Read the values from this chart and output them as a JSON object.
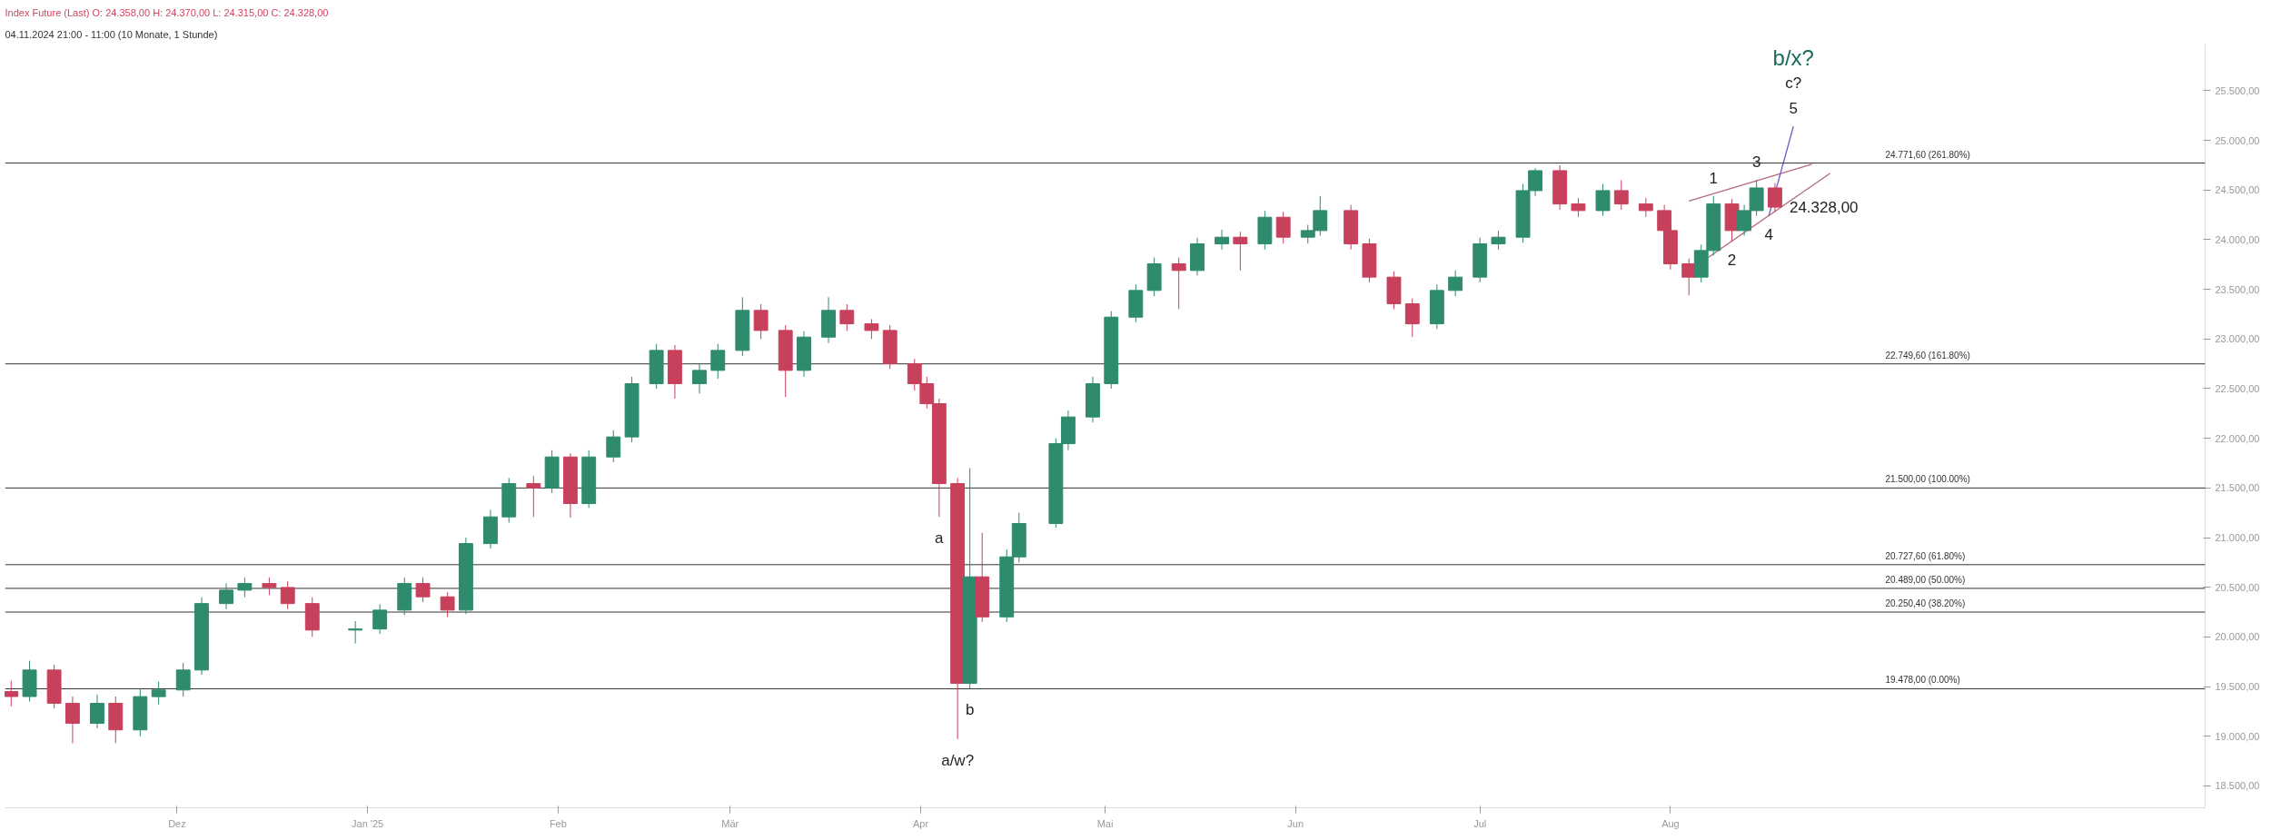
{
  "chart_data": {
    "type": "candlestick",
    "title": "Index Future (Last)  O: 24.358,00  H: 24.370,00  L: 24.315,00  C: 24.328,00",
    "subtitle": "04.11.2024 21:00 - 11:00  (10 Monate, 1 Stunde)",
    "x": [
      "2024-11-04",
      "2024-11-07",
      "2024-11-11",
      "2024-11-14",
      "2024-11-18",
      "2024-11-21",
      "2024-11-25",
      "2024-11-28",
      "2024-12-02",
      "2024-12-05",
      "2024-12-09",
      "2024-12-12",
      "2024-12-16",
      "2024-12-19",
      "2024-12-23",
      "2024-12-30",
      "2025-01-03",
      "2025-01-07",
      "2025-01-10",
      "2025-01-14",
      "2025-01-17",
      "2025-01-21",
      "2025-01-24",
      "2025-01-28",
      "2025-01-31",
      "2025-02-03",
      "2025-02-06",
      "2025-02-10",
      "2025-02-13",
      "2025-02-17",
      "2025-02-20",
      "2025-02-24",
      "2025-02-27",
      "2025-03-03",
      "2025-03-06",
      "2025-03-10",
      "2025-03-13",
      "2025-03-17",
      "2025-03-20",
      "2025-03-24",
      "2025-03-27",
      "2025-03-31",
      "2025-04-02",
      "2025-04-04",
      "2025-04-07",
      "2025-04-09",
      "2025-04-11",
      "2025-04-15",
      "2025-04-17",
      "2025-04-23",
      "2025-04-25",
      "2025-04-29",
      "2025-05-02",
      "2025-05-06",
      "2025-05-09",
      "2025-05-13",
      "2025-05-16",
      "2025-05-20",
      "2025-05-23",
      "2025-05-27",
      "2025-05-30",
      "2025-06-03",
      "2025-06-05",
      "2025-06-10",
      "2025-06-13",
      "2025-06-17",
      "2025-06-20",
      "2025-06-24",
      "2025-06-27",
      "2025-07-01",
      "2025-07-04",
      "2025-07-08",
      "2025-07-10",
      "2025-07-14",
      "2025-07-17",
      "2025-07-21",
      "2025-07-24",
      "2025-07-28",
      "2025-07-31",
      "2025-08-01",
      "2025-08-04",
      "2025-08-06",
      "2025-08-08",
      "2025-08-11",
      "2025-08-13",
      "2025-08-15",
      "2025-08-18"
    ],
    "ohlc": [
      [
        19450,
        19560,
        19300,
        19400
      ],
      [
        19400,
        19760,
        19350,
        19667
      ],
      [
        19667,
        19720,
        19280,
        19332
      ],
      [
        19332,
        19400,
        18930,
        19130
      ],
      [
        19130,
        19420,
        19080,
        19332
      ],
      [
        19332,
        19400,
        18930,
        19064
      ],
      [
        19064,
        19480,
        19000,
        19399
      ],
      [
        19399,
        19550,
        19320,
        19466
      ],
      [
        19466,
        19740,
        19400,
        19667
      ],
      [
        19667,
        20400,
        19620,
        20336
      ],
      [
        20336,
        20540,
        20280,
        20471
      ],
      [
        20471,
        20600,
        20400,
        20538
      ],
      [
        20538,
        20600,
        20420,
        20498
      ],
      [
        20498,
        20560,
        20280,
        20336
      ],
      [
        20336,
        20400,
        20000,
        20069
      ],
      [
        20069,
        20160,
        19935,
        20080
      ],
      [
        20080,
        20330,
        20030,
        20270
      ],
      [
        20270,
        20600,
        20220,
        20538
      ],
      [
        20538,
        20600,
        20350,
        20404
      ],
      [
        20404,
        20450,
        20200,
        20270
      ],
      [
        20270,
        21000,
        20230,
        20940
      ],
      [
        20940,
        21280,
        20890,
        21209
      ],
      [
        21209,
        21600,
        21150,
        21544
      ],
      [
        21544,
        21620,
        21209,
        21500
      ],
      [
        21500,
        21880,
        21450,
        21812
      ],
      [
        21812,
        21850,
        21200,
        21343
      ],
      [
        21343,
        21880,
        21300,
        21812
      ],
      [
        21812,
        22080,
        21760,
        22014
      ],
      [
        22014,
        22620,
        21960,
        22550
      ],
      [
        22550,
        22950,
        22500,
        22885
      ],
      [
        22885,
        22940,
        22400,
        22550
      ],
      [
        22550,
        22750,
        22450,
        22684
      ],
      [
        22684,
        22950,
        22600,
        22885
      ],
      [
        22885,
        23421,
        22830,
        23288
      ],
      [
        23288,
        23350,
        23000,
        23086
      ],
      [
        23086,
        23140,
        22416,
        22684
      ],
      [
        22684,
        23080,
        22620,
        23019
      ],
      [
        23019,
        23421,
        22960,
        23288
      ],
      [
        23288,
        23350,
        23080,
        23153
      ],
      [
        23153,
        23200,
        23000,
        23086
      ],
      [
        23086,
        23140,
        22700,
        22751
      ],
      [
        22751,
        22800,
        22480,
        22550
      ],
      [
        22550,
        22620,
        22300,
        22349
      ],
      [
        22349,
        22400,
        21209,
        21544
      ],
      [
        21544,
        21600,
        18970,
        19533
      ],
      [
        19533,
        21700,
        19480,
        20605
      ],
      [
        20605,
        21050,
        20150,
        20202
      ],
      [
        20202,
        20880,
        20150,
        20806
      ],
      [
        20806,
        21250,
        20750,
        21142
      ],
      [
        21142,
        22000,
        21100,
        21946
      ],
      [
        21946,
        22280,
        21880,
        22215
      ],
      [
        22215,
        22620,
        22160,
        22550
      ],
      [
        22550,
        23280,
        22500,
        23220
      ],
      [
        23220,
        23550,
        23170,
        23489
      ],
      [
        23489,
        23820,
        23430,
        23757
      ],
      [
        23757,
        23820,
        23300,
        23690
      ],
      [
        23690,
        24020,
        23640,
        23958
      ],
      [
        23958,
        24100,
        23900,
        24025
      ],
      [
        24025,
        24080,
        23690,
        23958
      ],
      [
        23958,
        24290,
        23900,
        24226
      ],
      [
        24226,
        24280,
        23960,
        24025
      ],
      [
        24025,
        24150,
        23960,
        24092
      ],
      [
        24092,
        24440,
        24040,
        24293
      ],
      [
        24293,
        24350,
        23900,
        23958
      ],
      [
        23958,
        24010,
        23570,
        23623
      ],
      [
        23623,
        23680,
        23300,
        23355
      ],
      [
        23355,
        23410,
        23020,
        23153
      ],
      [
        23153,
        23550,
        23100,
        23489
      ],
      [
        23489,
        23690,
        23430,
        23623
      ],
      [
        23623,
        24020,
        23570,
        23958
      ],
      [
        23958,
        24090,
        23900,
        24025
      ],
      [
        24025,
        24560,
        23970,
        24494
      ],
      [
        24494,
        24720,
        24440,
        24695
      ],
      [
        24695,
        24750,
        24300,
        24360
      ],
      [
        24360,
        24420,
        24230,
        24293
      ],
      [
        24293,
        24560,
        24240,
        24494
      ],
      [
        24494,
        24600,
        24300,
        24360
      ],
      [
        24360,
        24420,
        24230,
        24293
      ],
      [
        24293,
        24350,
        24040,
        24092
      ],
      [
        24092,
        24150,
        23700,
        23757
      ],
      [
        23757,
        23810,
        23440,
        23623
      ],
      [
        23623,
        23950,
        23570,
        23891
      ],
      [
        23891,
        24440,
        23840,
        24360
      ],
      [
        24360,
        24410,
        23980,
        24092
      ],
      [
        24092,
        24350,
        24040,
        24293
      ],
      [
        24293,
        24600,
        24240,
        24521
      ],
      [
        24521,
        24570,
        24280,
        24328
      ]
    ],
    "colors": [
      "#c8415c",
      "#2e8b6e",
      "#c8415c",
      "#c8415c",
      "#2e8b6e",
      "#c8415c",
      "#2e8b6e",
      "#2e8b6e",
      "#2e8b6e",
      "#2e8b6e",
      "#2e8b6e",
      "#2e8b6e",
      "#c8415c",
      "#c8415c",
      "#c8415c",
      "#2e8b6e",
      "#2e8b6e",
      "#2e8b6e",
      "#c8415c",
      "#c8415c",
      "#2e8b6e",
      "#2e8b6e",
      "#2e8b6e",
      "#c8415c",
      "#2e8b6e",
      "#c8415c",
      "#2e8b6e",
      "#2e8b6e",
      "#2e8b6e",
      "#2e8b6e",
      "#c8415c",
      "#2e8b6e",
      "#2e8b6e",
      "#2e8b6e",
      "#c8415c",
      "#c8415c",
      "#2e8b6e",
      "#2e8b6e",
      "#c8415c",
      "#c8415c",
      "#c8415c",
      "#c8415c",
      "#c8415c",
      "#c8415c",
      "#c8415c",
      "#2e8b6e",
      "#c8415c",
      "#2e8b6e",
      "#2e8b6e",
      "#2e8b6e",
      "#2e8b6e",
      "#2e8b6e",
      "#2e8b6e",
      "#2e8b6e",
      "#2e8b6e",
      "#c8415c",
      "#2e8b6e",
      "#2e8b6e",
      "#c8415c",
      "#2e8b6e",
      "#c8415c",
      "#2e8b6e",
      "#2e8b6e",
      "#c8415c",
      "#c8415c",
      "#c8415c",
      "#c8415c",
      "#2e8b6e",
      "#2e8b6e",
      "#2e8b6e",
      "#2e8b6e",
      "#2e8b6e",
      "#2e8b6e",
      "#c8415c",
      "#c8415c",
      "#2e8b6e",
      "#c8415c",
      "#c8415c",
      "#c8415c",
      "#c8415c",
      "#c8415c",
      "#2e8b6e",
      "#2e8b6e",
      "#c8415c",
      "#2e8b6e",
      "#2e8b6e",
      "#c8415c"
    ],
    "series": [
      {
        "type": "line",
        "color": "#b46a78",
        "x": [
          "2025-08-04",
          "2025-08-24"
        ],
        "values": [
          24390,
          24760
        ]
      },
      {
        "type": "line",
        "color": "#b46a78",
        "x": [
          "2025-08-05",
          "2025-08-27"
        ],
        "values": [
          23730,
          24670
        ]
      },
      {
        "type": "line",
        "color": "#6a5acd",
        "x": [
          "2025-08-17",
          "2025-08-21"
        ],
        "values": [
          24240,
          25140
        ]
      }
    ],
    "xlim": [
      "2024-11-03",
      "2025-10-27"
    ],
    "xticks": [
      {
        "value": "2024-12-01",
        "label": "Dez"
      },
      {
        "value": "2025-01-01",
        "label": "Jan '25"
      },
      {
        "value": "2025-02-01",
        "label": "Feb"
      },
      {
        "value": "2025-03-01",
        "label": "Mär"
      },
      {
        "value": "2025-04-01",
        "label": "Apr"
      },
      {
        "value": "2025-05-01",
        "label": "Mai"
      },
      {
        "value": "2025-06-01",
        "label": "Jun"
      },
      {
        "value": "2025-07-01",
        "label": "Jul"
      },
      {
        "value": "2025-08-01",
        "label": "Aug"
      }
    ],
    "ylim": [
      18280,
      25970
    ],
    "yticks": [
      {
        "value": 18500,
        "label": "18.500,00"
      },
      {
        "value": 19000,
        "label": "19.000,00"
      },
      {
        "value": 19500,
        "label": "19.500,00"
      },
      {
        "value": 20000,
        "label": "20.000,00"
      },
      {
        "value": 20500,
        "label": "20.500,00"
      },
      {
        "value": 21000,
        "label": "21.000,00"
      },
      {
        "value": 21500,
        "label": "21.500,00"
      },
      {
        "value": 22000,
        "label": "22.000,00"
      },
      {
        "value": 22500,
        "label": "22.500,00"
      },
      {
        "value": 23000,
        "label": "23.000,00"
      },
      {
        "value": 23500,
        "label": "23.500,00"
      },
      {
        "value": 24000,
        "label": "24.000,00"
      },
      {
        "value": 24500,
        "label": "24.500,00"
      },
      {
        "value": 25000,
        "label": "25.000,00"
      },
      {
        "value": 25500,
        "label": "25.500,00"
      }
    ],
    "ref_lines": [
      {
        "axis": "y",
        "value": 24771.6,
        "label": "24.771,60 (261.80%)",
        "color": "#333333"
      },
      {
        "axis": "y",
        "value": 22749.6,
        "label": "22.749,60 (161.80%)",
        "color": "#333333"
      },
      {
        "axis": "y",
        "value": 21500,
        "label": "21.500,00 (100.00%)",
        "color": "#333333"
      },
      {
        "axis": "y",
        "value": 20727.6,
        "label": "20.727,60 (61.80%)",
        "color": "#333333"
      },
      {
        "axis": "y",
        "value": 20489,
        "label": "20.489,00 (50.00%)",
        "color": "#333333"
      },
      {
        "axis": "y",
        "value": 20250.4,
        "label": "20.250,40 (38.20%)",
        "color": "#333333"
      },
      {
        "axis": "y",
        "value": 19478,
        "label": "19.478,00 (0.00%)",
        "color": "#333333"
      }
    ],
    "annotations": [
      {
        "text": "a",
        "x": "2025-04-04",
        "y": 21209
      },
      {
        "text": "b",
        "x": "2025-04-09",
        "y": 19480
      },
      {
        "text": "a/w?",
        "x": "2025-04-07",
        "y": 18970
      },
      {
        "text": "1",
        "x": "2025-08-08",
        "y": 24440
      },
      {
        "text": "2",
        "x": "2025-08-11",
        "y": 23980
      },
      {
        "text": "3",
        "x": "2025-08-15",
        "y": 24600
      },
      {
        "text": "4",
        "x": "2025-08-17",
        "y": 24240
      },
      {
        "text": "24.328,00",
        "x": "2025-08-18",
        "y": 24328
      },
      {
        "text": "5",
        "x": "2025-08-21",
        "y": 25140
      },
      {
        "text": "c?",
        "x": "2025-08-21",
        "y": 25140
      },
      "b/x?"
    ],
    "grid": false
  }
}
